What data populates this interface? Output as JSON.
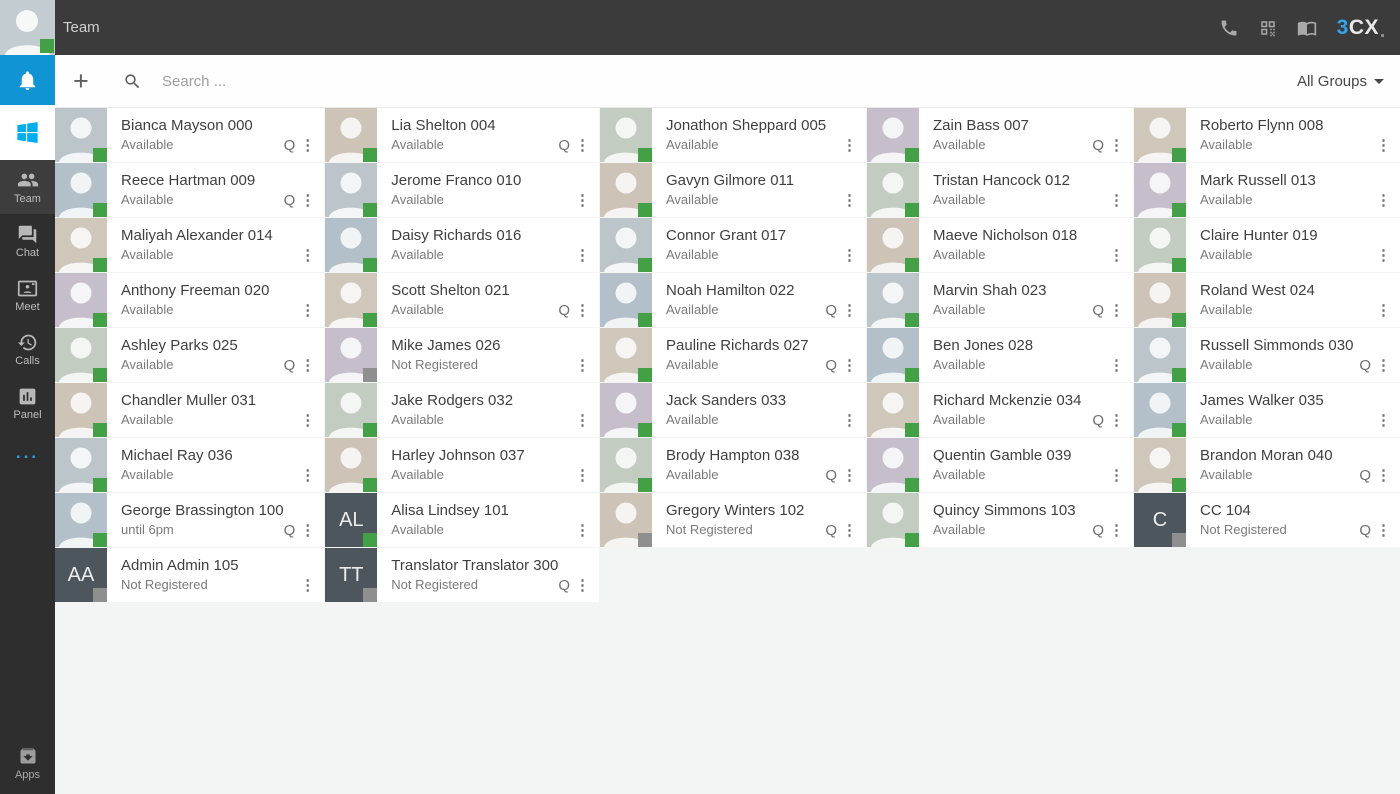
{
  "topbar": {
    "title": "Team",
    "logo_prefix": "3",
    "logo_suffix": "CX"
  },
  "toolbar": {
    "add_label": "+",
    "search_placeholder": "Search ...",
    "group_filter": "All Groups"
  },
  "sidebar": {
    "nav": [
      {
        "label": "Team",
        "active": true
      },
      {
        "label": "Chat",
        "active": false
      },
      {
        "label": "Meet",
        "active": false
      },
      {
        "label": "Calls",
        "active": false
      },
      {
        "label": "Panel",
        "active": false
      }
    ],
    "more_label": "...",
    "apps_label": "Apps"
  },
  "ui": {
    "queue_badge": "Q",
    "kebab": "⋮"
  },
  "colors": {
    "presence_available": "#43a047",
    "presence_offline": "#8f8f8f",
    "bell_bg": "#1194d4",
    "windows_blue": "#00adef",
    "logo_blue": "#35a3e8",
    "dots_blue": "#2e9fe0",
    "initials_bg": "#4d565c"
  },
  "contacts": [
    {
      "name": "Bianca Mayson",
      "extension": "000",
      "status": "Available",
      "queue": true,
      "avatar": "photo",
      "initials": "",
      "presence": "available"
    },
    {
      "name": "Lia Shelton",
      "extension": "004",
      "status": "Available",
      "queue": true,
      "avatar": "photo",
      "initials": "",
      "presence": "available"
    },
    {
      "name": "Jonathon Sheppard",
      "extension": "005",
      "status": "Available",
      "queue": false,
      "avatar": "photo",
      "initials": "",
      "presence": "available"
    },
    {
      "name": "Zain Bass",
      "extension": "007",
      "status": "Available",
      "queue": true,
      "avatar": "photo",
      "initials": "",
      "presence": "available"
    },
    {
      "name": "Roberto Flynn",
      "extension": "008",
      "status": "Available",
      "queue": false,
      "avatar": "photo",
      "initials": "",
      "presence": "available"
    },
    {
      "name": "Reece Hartman",
      "extension": "009",
      "status": "Available",
      "queue": true,
      "avatar": "photo",
      "initials": "",
      "presence": "available"
    },
    {
      "name": "Jerome Franco",
      "extension": "010",
      "status": "Available",
      "queue": false,
      "avatar": "photo",
      "initials": "",
      "presence": "available"
    },
    {
      "name": "Gavyn Gilmore",
      "extension": "011",
      "status": "Available",
      "queue": false,
      "avatar": "photo",
      "initials": "",
      "presence": "available"
    },
    {
      "name": "Tristan Hancock",
      "extension": "012",
      "status": "Available",
      "queue": false,
      "avatar": "photo",
      "initials": "",
      "presence": "available"
    },
    {
      "name": "Mark Russell",
      "extension": "013",
      "status": "Available",
      "queue": false,
      "avatar": "photo",
      "initials": "",
      "presence": "available"
    },
    {
      "name": "Maliyah Alexander",
      "extension": "014",
      "status": "Available",
      "queue": false,
      "avatar": "photo",
      "initials": "",
      "presence": "available"
    },
    {
      "name": "Daisy Richards",
      "extension": "016",
      "status": "Available",
      "queue": false,
      "avatar": "photo",
      "initials": "",
      "presence": "available"
    },
    {
      "name": "Connor Grant",
      "extension": "017",
      "status": "Available",
      "queue": false,
      "avatar": "photo",
      "initials": "",
      "presence": "available"
    },
    {
      "name": "Maeve Nicholson",
      "extension": "018",
      "status": "Available",
      "queue": false,
      "avatar": "photo",
      "initials": "",
      "presence": "available"
    },
    {
      "name": "Claire Hunter",
      "extension": "019",
      "status": "Available",
      "queue": false,
      "avatar": "photo",
      "initials": "",
      "presence": "available"
    },
    {
      "name": "Anthony Freeman",
      "extension": "020",
      "status": "Available",
      "queue": false,
      "avatar": "photo",
      "initials": "",
      "presence": "available"
    },
    {
      "name": "Scott Shelton",
      "extension": "021",
      "status": "Available",
      "queue": true,
      "avatar": "photo",
      "initials": "",
      "presence": "available"
    },
    {
      "name": "Noah Hamilton",
      "extension": "022",
      "status": "Available",
      "queue": true,
      "avatar": "photo",
      "initials": "",
      "presence": "available"
    },
    {
      "name": "Marvin Shah",
      "extension": "023",
      "status": "Available",
      "queue": true,
      "avatar": "photo",
      "initials": "",
      "presence": "available"
    },
    {
      "name": "Roland West",
      "extension": "024",
      "status": "Available",
      "queue": false,
      "avatar": "photo",
      "initials": "",
      "presence": "available"
    },
    {
      "name": "Ashley Parks",
      "extension": "025",
      "status": "Available",
      "queue": true,
      "avatar": "photo",
      "initials": "",
      "presence": "available"
    },
    {
      "name": "Mike James",
      "extension": "026",
      "status": "Not Registered",
      "queue": false,
      "avatar": "photo",
      "initials": "",
      "presence": "offline"
    },
    {
      "name": "Pauline Richards",
      "extension": "027",
      "status": "Available",
      "queue": true,
      "avatar": "photo",
      "initials": "",
      "presence": "available"
    },
    {
      "name": "Ben Jones",
      "extension": "028",
      "status": "Available",
      "queue": false,
      "avatar": "photo",
      "initials": "",
      "presence": "available"
    },
    {
      "name": "Russell Simmonds",
      "extension": "030",
      "status": "Available",
      "queue": true,
      "avatar": "photo",
      "initials": "",
      "presence": "available"
    },
    {
      "name": "Chandler Muller",
      "extension": "031",
      "status": "Available",
      "queue": false,
      "avatar": "photo",
      "initials": "",
      "presence": "available"
    },
    {
      "name": "Jake Rodgers",
      "extension": "032",
      "status": "Available",
      "queue": false,
      "avatar": "photo",
      "initials": "",
      "presence": "available"
    },
    {
      "name": "Jack Sanders",
      "extension": "033",
      "status": "Available",
      "queue": false,
      "avatar": "photo",
      "initials": "",
      "presence": "available"
    },
    {
      "name": "Richard Mckenzie",
      "extension": "034",
      "status": "Available",
      "queue": true,
      "avatar": "photo",
      "initials": "",
      "presence": "available"
    },
    {
      "name": "James Walker",
      "extension": "035",
      "status": "Available",
      "queue": false,
      "avatar": "photo",
      "initials": "",
      "presence": "available"
    },
    {
      "name": "Michael Ray",
      "extension": "036",
      "status": "Available",
      "queue": false,
      "avatar": "photo",
      "initials": "",
      "presence": "available"
    },
    {
      "name": "Harley Johnson",
      "extension": "037",
      "status": "Available",
      "queue": false,
      "avatar": "photo",
      "initials": "",
      "presence": "available"
    },
    {
      "name": "Brody Hampton",
      "extension": "038",
      "status": "Available",
      "queue": true,
      "avatar": "photo",
      "initials": "",
      "presence": "available"
    },
    {
      "name": "Quentin Gamble",
      "extension": "039",
      "status": "Available",
      "queue": false,
      "avatar": "photo",
      "initials": "",
      "presence": "available"
    },
    {
      "name": "Brandon Moran",
      "extension": "040",
      "status": "Available",
      "queue": true,
      "avatar": "photo",
      "initials": "",
      "presence": "available"
    },
    {
      "name": "George Brassington",
      "extension": "100",
      "status": "until 6pm",
      "queue": true,
      "avatar": "photo",
      "initials": "",
      "presence": "available"
    },
    {
      "name": "Alisa Lindsey",
      "extension": "101",
      "status": "Available",
      "queue": false,
      "avatar": "initials",
      "initials": "AL",
      "presence": "available"
    },
    {
      "name": "Gregory Winters",
      "extension": "102",
      "status": "Not Registered",
      "queue": true,
      "avatar": "photo",
      "initials": "",
      "presence": "offline"
    },
    {
      "name": "Quincy Simmons",
      "extension": "103",
      "status": "Available",
      "queue": true,
      "avatar": "photo",
      "initials": "",
      "presence": "available"
    },
    {
      "name": "CC",
      "extension": "104",
      "status": "Not Registered",
      "queue": true,
      "avatar": "initials",
      "initials": "C",
      "presence": "offline"
    },
    {
      "name": "Admin Admin",
      "extension": "105",
      "status": "Not Registered",
      "queue": false,
      "avatar": "initials",
      "initials": "AA",
      "presence": "offline"
    },
    {
      "name": "Translator Translator",
      "extension": "300",
      "status": "Not Registered",
      "queue": true,
      "avatar": "initials",
      "initials": "TT",
      "presence": "offline"
    }
  ]
}
